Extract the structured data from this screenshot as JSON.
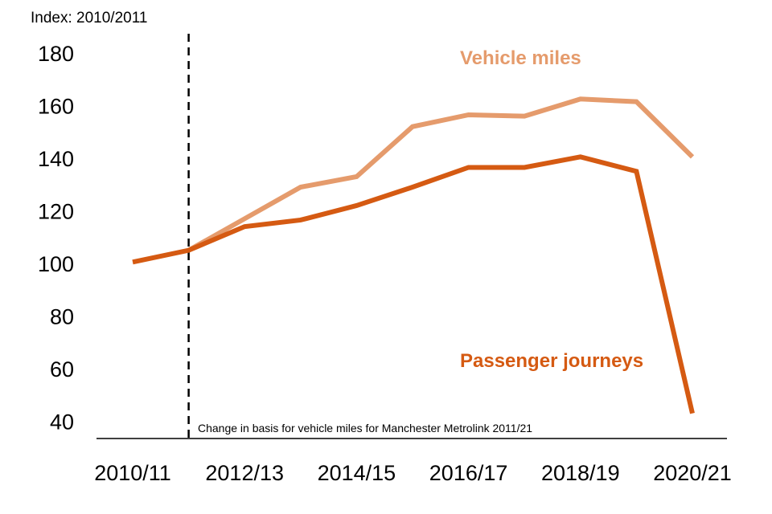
{
  "chart_data": {
    "type": "line",
    "ylabel": "Index: 2010/2011",
    "x": [
      "2010/11",
      "2011/12",
      "2012/13",
      "2013/14",
      "2014/15",
      "2015/16",
      "2016/17",
      "2017/18",
      "2018/19",
      "2019/20",
      "2020/21"
    ],
    "x_tick_labels": [
      "2010/11",
      "2012/13",
      "2014/15",
      "2016/17",
      "2018/19",
      "2020/21"
    ],
    "y_ticks": [
      40,
      60,
      80,
      100,
      120,
      140,
      160,
      180
    ],
    "ylim": [
      40,
      180
    ],
    "grid": false,
    "series": [
      {
        "name": "Vehicle miles",
        "color": "#E59B6C",
        "values": [
          null,
          105,
          117,
          129,
          133,
          152,
          156.5,
          156,
          162.5,
          161.5,
          140.5
        ]
      },
      {
        "name": "Passenger journeys",
        "color": "#D55A12",
        "values": [
          100.5,
          105,
          114,
          116.5,
          122,
          129,
          136.5,
          136.5,
          140.5,
          135,
          43
        ]
      }
    ],
    "annotation": {
      "x": "2011/12",
      "style": "dashed vertical line",
      "text": "Change in basis for vehicle miles for Manchester Metrolink 2011/21"
    }
  }
}
